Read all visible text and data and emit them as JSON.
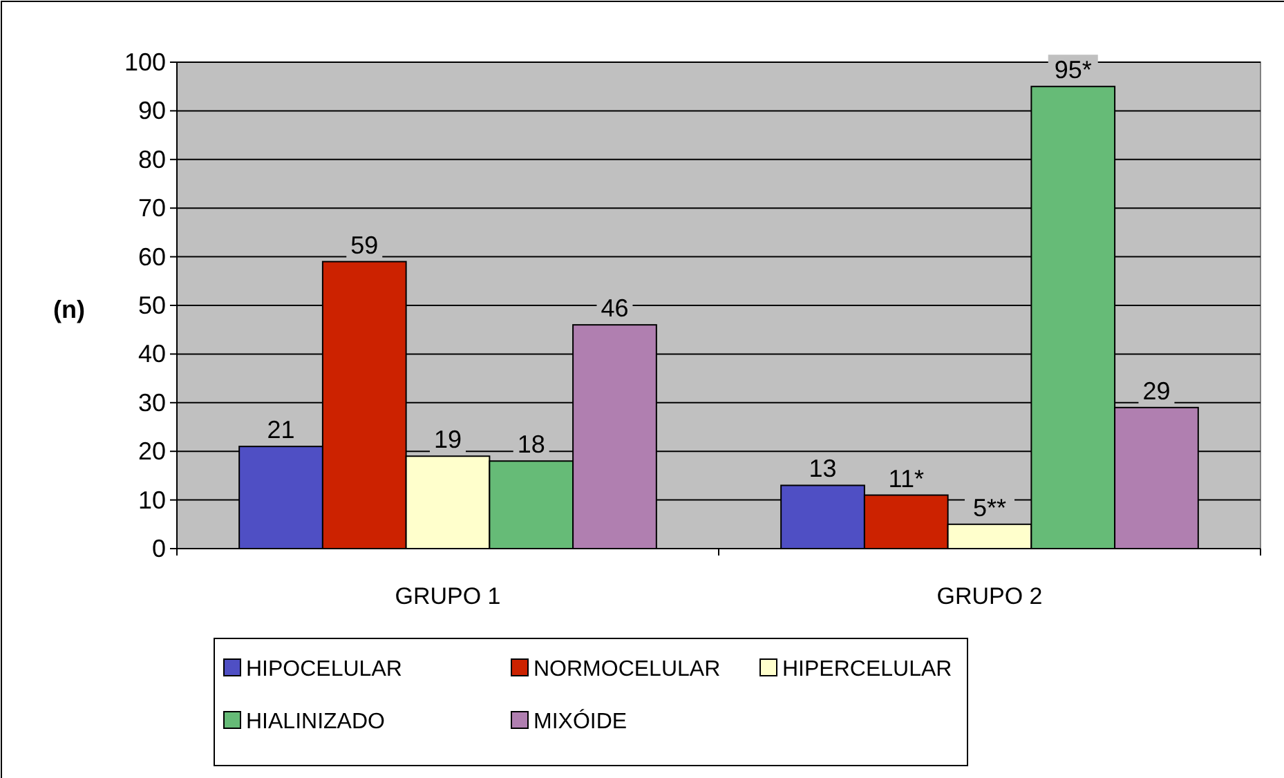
{
  "chart_data": {
    "type": "bar",
    "ylabel": "(n)",
    "categories": [
      "GRUPO 1",
      "GRUPO 2"
    ],
    "series": [
      {
        "name": "HIPOCELULAR",
        "color": "#4f4fc4",
        "values": [
          21,
          13
        ],
        "value_labels": [
          "21",
          "13"
        ]
      },
      {
        "name": "NORMOCELULAR",
        "color": "#cc2200",
        "values": [
          59,
          11
        ],
        "value_labels": [
          "59",
          "11*"
        ]
      },
      {
        "name": "HIPERCELULAR",
        "color": "#ffffcc",
        "values": [
          19,
          5
        ],
        "value_labels": [
          "19",
          "5**"
        ]
      },
      {
        "name": "HIALINIZADO",
        "color": "#66bb77",
        "values": [
          18,
          95
        ],
        "value_labels": [
          "18",
          "95*"
        ]
      },
      {
        "name": "MIXÓIDE",
        "color": "#b07fb0",
        "values": [
          46,
          29
        ],
        "value_labels": [
          "46",
          "29"
        ]
      }
    ],
    "ylim": [
      0,
      100
    ],
    "yticks": [
      0,
      10,
      20,
      30,
      40,
      50,
      60,
      70,
      80,
      90,
      100
    ],
    "grid": "y",
    "legend": "bottom"
  }
}
